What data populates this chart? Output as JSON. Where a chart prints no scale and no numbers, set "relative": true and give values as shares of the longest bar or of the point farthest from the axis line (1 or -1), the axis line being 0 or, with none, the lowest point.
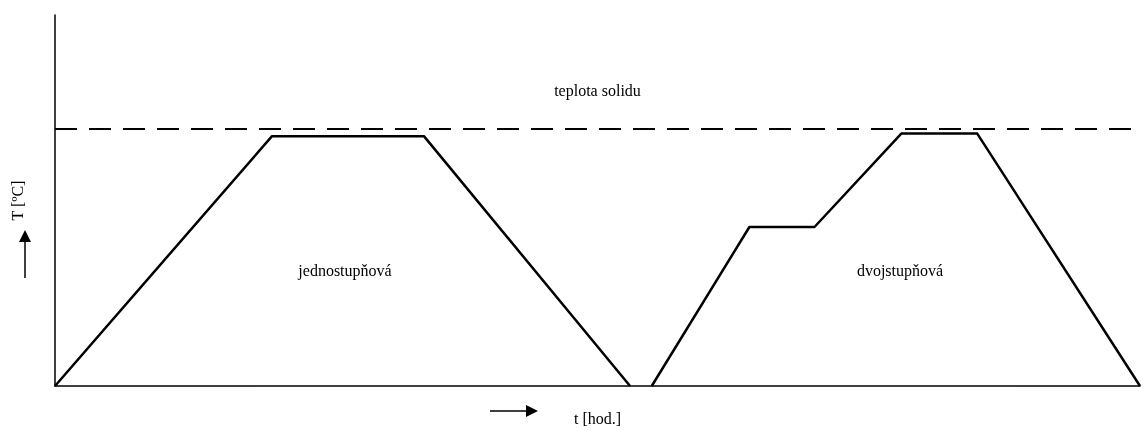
{
  "chart_data": {
    "type": "line",
    "relative": true,
    "xlabel": "t [hod.]",
    "ylabel": "T [ºC]",
    "categories": [
      null,
      null,
      null,
      null,
      null,
      null,
      null,
      null,
      null,
      null,
      null,
      null,
      null,
      null,
      null,
      null,
      null,
      null,
      null,
      null,
      null,
      null,
      null,
      null,
      null,
      null,
      null,
      null,
      null,
      null,
      null,
      null,
      null,
      null,
      null,
      null,
      null,
      null,
      null,
      null,
      null,
      null,
      null,
      null,
      null,
      null,
      null,
      null,
      null,
      null,
      null,
      null,
      null,
      null,
      null,
      null,
      null,
      null,
      null,
      null,
      null,
      null,
      null,
      null,
      null,
      null,
      null,
      null,
      null,
      null,
      null,
      null,
      null,
      null,
      null,
      null,
      null,
      null,
      null,
      null,
      null,
      null,
      null,
      null,
      null,
      null,
      null,
      null,
      null,
      null,
      null,
      null,
      null,
      null,
      null,
      null,
      null,
      null,
      null,
      null,
      null
    ],
    "grid": false,
    "marker": "none",
    "line_style": "solid",
    "series": [
      {
        "color": "#000000",
        "values": [
          0,
          null,
          null,
          null,
          null,
          null,
          null,
          null,
          null,
          null,
          null,
          null,
          null,
          null,
          null,
          null,
          null,
          null,
          null,
          null,
          0.99,
          null,
          null,
          null,
          null,
          null,
          null,
          null,
          null,
          null,
          null,
          null,
          null,
          null,
          0.99,
          null,
          null,
          null,
          null,
          null,
          null,
          null,
          null,
          null,
          null,
          null,
          null,
          null,
          null,
          null,
          null,
          null,
          null,
          0,
          null,
          null,
          null,
          null,
          null,
          null,
          null,
          null,
          null,
          null,
          null,
          null,
          null,
          null,
          null,
          null,
          null,
          null,
          null,
          null,
          null,
          null,
          null,
          null,
          null,
          null,
          null,
          null,
          null,
          null,
          null,
          null,
          null,
          null,
          null,
          null,
          null,
          null,
          null,
          null,
          null,
          null,
          null,
          null,
          null,
          null,
          null
        ]
      },
      {
        "color": "#000000",
        "values": [
          null,
          null,
          null,
          null,
          null,
          null,
          null,
          null,
          null,
          null,
          null,
          null,
          null,
          null,
          null,
          null,
          null,
          null,
          null,
          null,
          null,
          null,
          null,
          null,
          null,
          null,
          null,
          null,
          null,
          null,
          null,
          null,
          null,
          null,
          null,
          null,
          null,
          null,
          null,
          null,
          null,
          null,
          null,
          null,
          null,
          null,
          null,
          null,
          null,
          null,
          null,
          null,
          null,
          null,
          null,
          0,
          null,
          null,
          null,
          null,
          null,
          null,
          null,
          null,
          0.63,
          null,
          null,
          null,
          null,
          null,
          0.63,
          null,
          null,
          null,
          null,
          null,
          null,
          null,
          1,
          null,
          null,
          null,
          null,
          null,
          null,
          1,
          null,
          null,
          null,
          null,
          null,
          null,
          null,
          null,
          null,
          null,
          null,
          null,
          null,
          null,
          0
        ]
      }
    ],
    "ref_lines": [
      {
        "axis": "y",
        "value": 1.02,
        "label": "teplota solidu",
        "line_style": "dashed",
        "color": "#000000"
      }
    ],
    "annotations": [
      "jednostupňová",
      "dvojstupňová"
    ]
  }
}
